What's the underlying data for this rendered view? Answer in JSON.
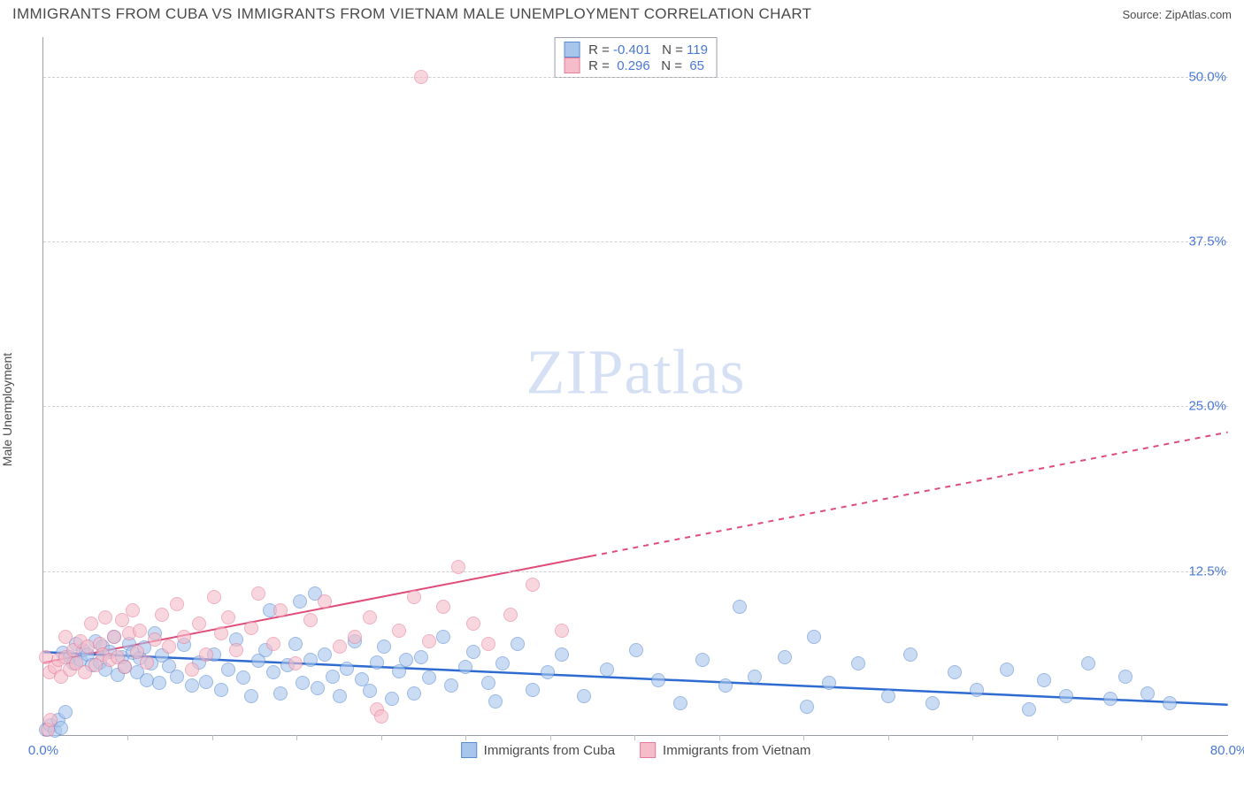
{
  "header": {
    "title": "IMMIGRANTS FROM CUBA VS IMMIGRANTS FROM VIETNAM MALE UNEMPLOYMENT CORRELATION CHART",
    "source": "Source: ZipAtlas.com"
  },
  "watermark": {
    "bold": "ZIP",
    "light": "atlas"
  },
  "chart": {
    "type": "scatter",
    "ylabel": "Male Unemployment",
    "background_color": "#ffffff",
    "grid_color": "#d0d0d0",
    "axis_color": "#9aa0a6",
    "tick_color": "#4a78d6",
    "label_fontsize": 14,
    "tick_fontsize": 15,
    "xlim": [
      0,
      80
    ],
    "ylim": [
      0,
      53
    ],
    "xtick_min": {
      "pos": 0,
      "label": "0.0%"
    },
    "xtick_max": {
      "pos": 80,
      "label": "80.0%"
    },
    "xtick_minor_step": 5.7,
    "xtick_minor_count": 13,
    "yticks": [
      {
        "pos": 50.0,
        "label": "50.0%"
      },
      {
        "pos": 37.5,
        "label": "37.5%"
      },
      {
        "pos": 25.0,
        "label": "25.0%"
      },
      {
        "pos": 12.5,
        "label": "12.5%"
      }
    ],
    "series": [
      {
        "name": "Immigrants from Cuba",
        "color_fill": "#a8c5ec",
        "color_stroke": "#5b8bd4",
        "marker_radius": 8,
        "marker_opacity": 0.6,
        "r_value": "-0.401",
        "n_value": "119",
        "trend": {
          "color": "#2e6bd1",
          "width": 2.5,
          "x1": 0,
          "y1": 6.3,
          "x2": 80,
          "y2": 2.3,
          "solid_until_x": 80
        },
        "points": [
          [
            0.2,
            0.5
          ],
          [
            0.5,
            0.8
          ],
          [
            0.8,
            0.4
          ],
          [
            1.0,
            1.2
          ],
          [
            1.2,
            0.6
          ],
          [
            1.5,
            1.8
          ],
          [
            1.3,
            6.3
          ],
          [
            1.8,
            6.0
          ],
          [
            2.0,
            5.5
          ],
          [
            2.2,
            7.0
          ],
          [
            2.5,
            5.8
          ],
          [
            2.7,
            6.5
          ],
          [
            3.0,
            6.2
          ],
          [
            3.3,
            5.4
          ],
          [
            3.5,
            7.2
          ],
          [
            3.8,
            5.6
          ],
          [
            4.0,
            6.8
          ],
          [
            4.2,
            5.0
          ],
          [
            4.5,
            6.4
          ],
          [
            4.8,
            7.5
          ],
          [
            5.0,
            4.6
          ],
          [
            5.3,
            6.0
          ],
          [
            5.5,
            5.2
          ],
          [
            5.8,
            7.0
          ],
          [
            6.0,
            6.3
          ],
          [
            6.3,
            4.8
          ],
          [
            6.5,
            5.9
          ],
          [
            6.8,
            6.7
          ],
          [
            7.0,
            4.2
          ],
          [
            7.3,
            5.5
          ],
          [
            7.5,
            7.8
          ],
          [
            7.8,
            4.0
          ],
          [
            8.0,
            6.1
          ],
          [
            8.5,
            5.3
          ],
          [
            9.0,
            4.5
          ],
          [
            9.5,
            6.9
          ],
          [
            10.0,
            3.8
          ],
          [
            10.5,
            5.6
          ],
          [
            11.0,
            4.1
          ],
          [
            11.5,
            6.2
          ],
          [
            12.0,
            3.5
          ],
          [
            12.5,
            5.0
          ],
          [
            13.0,
            7.3
          ],
          [
            13.5,
            4.4
          ],
          [
            14.0,
            3.0
          ],
          [
            14.5,
            5.7
          ],
          [
            15.0,
            6.5
          ],
          [
            15.3,
            9.5
          ],
          [
            15.5,
            4.8
          ],
          [
            16.0,
            3.2
          ],
          [
            16.5,
            5.4
          ],
          [
            17.0,
            7.0
          ],
          [
            17.3,
            10.2
          ],
          [
            17.5,
            4.0
          ],
          [
            18.0,
            5.8
          ],
          [
            18.3,
            10.8
          ],
          [
            18.5,
            3.6
          ],
          [
            19.0,
            6.2
          ],
          [
            19.5,
            4.5
          ],
          [
            20.0,
            3.0
          ],
          [
            20.5,
            5.1
          ],
          [
            21.0,
            7.2
          ],
          [
            21.5,
            4.3
          ],
          [
            22.0,
            3.4
          ],
          [
            22.5,
            5.6
          ],
          [
            23.0,
            6.8
          ],
          [
            23.5,
            2.8
          ],
          [
            24.0,
            4.9
          ],
          [
            24.5,
            5.8
          ],
          [
            25.0,
            3.2
          ],
          [
            25.5,
            6.0
          ],
          [
            26.0,
            4.4
          ],
          [
            27.0,
            7.5
          ],
          [
            27.5,
            3.8
          ],
          [
            28.5,
            5.2
          ],
          [
            29.0,
            6.4
          ],
          [
            30.0,
            4.0
          ],
          [
            30.5,
            2.6
          ],
          [
            31.0,
            5.5
          ],
          [
            32.0,
            7.0
          ],
          [
            33.0,
            3.5
          ],
          [
            34.0,
            4.8
          ],
          [
            35.0,
            6.2
          ],
          [
            36.5,
            3.0
          ],
          [
            38.0,
            5.0
          ],
          [
            40.0,
            6.5
          ],
          [
            41.5,
            4.2
          ],
          [
            43.0,
            2.5
          ],
          [
            44.5,
            5.8
          ],
          [
            46.0,
            3.8
          ],
          [
            47.0,
            9.8
          ],
          [
            48.0,
            4.5
          ],
          [
            50.0,
            6.0
          ],
          [
            51.5,
            2.2
          ],
          [
            52.0,
            7.5
          ],
          [
            53.0,
            4.0
          ],
          [
            55.0,
            5.5
          ],
          [
            57.0,
            3.0
          ],
          [
            58.5,
            6.2
          ],
          [
            60.0,
            2.5
          ],
          [
            61.5,
            4.8
          ],
          [
            63.0,
            3.5
          ],
          [
            65.0,
            5.0
          ],
          [
            66.5,
            2.0
          ],
          [
            67.5,
            4.2
          ],
          [
            69.0,
            3.0
          ],
          [
            70.5,
            5.5
          ],
          [
            72.0,
            2.8
          ],
          [
            73.0,
            4.5
          ],
          [
            74.5,
            3.2
          ],
          [
            76.0,
            2.5
          ]
        ]
      },
      {
        "name": "Immigrants from Vietnam",
        "color_fill": "#f5bcc9",
        "color_stroke": "#e87b9a",
        "marker_radius": 8,
        "marker_opacity": 0.6,
        "r_value": "0.296",
        "n_value": "65",
        "trend": {
          "color": "#e04c7a",
          "width": 2,
          "x1": 0,
          "y1": 5.5,
          "x2": 80,
          "y2": 23.0,
          "solid_until_x": 37
        },
        "points": [
          [
            0.3,
            0.5
          ],
          [
            0.5,
            1.2
          ],
          [
            0.4,
            4.8
          ],
          [
            0.8,
            5.2
          ],
          [
            1.0,
            5.8
          ],
          [
            1.2,
            4.5
          ],
          [
            1.5,
            6.0
          ],
          [
            1.5,
            7.5
          ],
          [
            1.8,
            5.0
          ],
          [
            2.0,
            6.5
          ],
          [
            2.2,
            5.5
          ],
          [
            2.5,
            7.2
          ],
          [
            2.8,
            4.8
          ],
          [
            3.0,
            6.8
          ],
          [
            3.2,
            8.5
          ],
          [
            3.5,
            5.4
          ],
          [
            3.8,
            7.0
          ],
          [
            4.0,
            6.2
          ],
          [
            4.2,
            9.0
          ],
          [
            4.5,
            5.8
          ],
          [
            4.8,
            7.5
          ],
          [
            5.0,
            6.0
          ],
          [
            5.3,
            8.8
          ],
          [
            5.5,
            5.2
          ],
          [
            5.8,
            7.8
          ],
          [
            6.0,
            9.5
          ],
          [
            6.3,
            6.4
          ],
          [
            6.5,
            8.0
          ],
          [
            7.0,
            5.6
          ],
          [
            7.5,
            7.3
          ],
          [
            8.0,
            9.2
          ],
          [
            8.5,
            6.8
          ],
          [
            9.0,
            10.0
          ],
          [
            9.5,
            7.5
          ],
          [
            10.0,
            5.0
          ],
          [
            10.5,
            8.5
          ],
          [
            11.0,
            6.2
          ],
          [
            11.5,
            10.5
          ],
          [
            12.0,
            7.8
          ],
          [
            12.5,
            9.0
          ],
          [
            13.0,
            6.5
          ],
          [
            14.0,
            8.2
          ],
          [
            14.5,
            10.8
          ],
          [
            15.5,
            7.0
          ],
          [
            16.0,
            9.5
          ],
          [
            17.0,
            5.5
          ],
          [
            18.0,
            8.8
          ],
          [
            19.0,
            10.2
          ],
          [
            20.0,
            6.8
          ],
          [
            21.0,
            7.5
          ],
          [
            22.0,
            9.0
          ],
          [
            22.5,
            2.0
          ],
          [
            22.8,
            1.5
          ],
          [
            24.0,
            8.0
          ],
          [
            25.0,
            10.5
          ],
          [
            26.0,
            7.2
          ],
          [
            27.0,
            9.8
          ],
          [
            28.0,
            12.8
          ],
          [
            29.0,
            8.5
          ],
          [
            30.0,
            7.0
          ],
          [
            31.5,
            9.2
          ],
          [
            33.0,
            11.5
          ],
          [
            35.0,
            8.0
          ],
          [
            25.5,
            50.0
          ],
          [
            0.2,
            6.0
          ]
        ]
      }
    ]
  }
}
